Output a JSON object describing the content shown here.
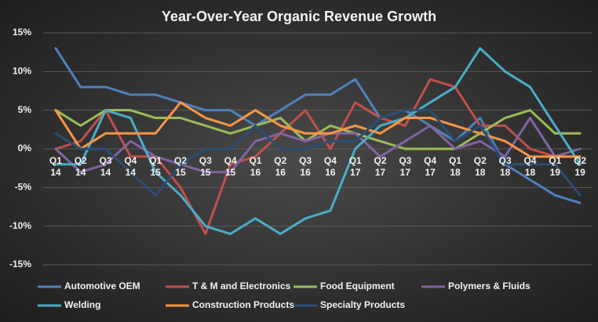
{
  "chart_data": {
    "type": "line",
    "title": "Year-Over-Year  Organic  Revenue  Growth",
    "categories": [
      "Q1 14",
      "Q2 14",
      "Q3 14",
      "Q4 14",
      "Q1 15",
      "Q2 15",
      "Q3 15",
      "Q4 15",
      "Q1 16",
      "Q2 16",
      "Q3 16",
      "Q4 16",
      "Q1 17",
      "Q2 17",
      "Q3 17",
      "Q4 17",
      "Q1 18",
      "Q2 18",
      "Q3 18",
      "Q4 18",
      "Q1 19",
      "Q2 19"
    ],
    "ylim": [
      -15,
      15
    ],
    "yticks": [
      {
        "value": -15,
        "label": "-15%"
      },
      {
        "value": -10,
        "label": "-10%"
      },
      {
        "value": -5,
        "label": "-5%"
      },
      {
        "value": 0,
        "label": "0%"
      },
      {
        "value": 5,
        "label": "5%"
      },
      {
        "value": 10,
        "label": "10%"
      },
      {
        "value": 15,
        "label": "15%"
      }
    ],
    "grid": true,
    "legend": "bottom",
    "series": [
      {
        "name": "Automotive OEM",
        "color": "#4f81bd",
        "values": [
          13,
          8,
          8,
          7,
          7,
          6,
          5,
          5,
          3,
          5,
          7,
          7,
          9,
          4,
          5,
          3,
          1,
          4,
          -2,
          -4,
          -6,
          -7
        ]
      },
      {
        "name": "T & M and Electronics",
        "color": "#c0504d",
        "values": [
          0,
          1,
          5,
          -1,
          -1,
          -5,
          -11,
          -2,
          -1,
          2,
          5,
          0,
          6,
          4,
          3,
          9,
          8,
          3,
          3,
          0,
          -1,
          -1
        ]
      },
      {
        "name": "Food Equipment",
        "color": "#9bbb59",
        "values": [
          5,
          3,
          5,
          5,
          4,
          4,
          3,
          2,
          3,
          4,
          1,
          3,
          2,
          1,
          0,
          0,
          0,
          2,
          4,
          5,
          2,
          2
        ]
      },
      {
        "name": "Polymers & Fluids",
        "color": "#8064a2",
        "values": [
          0,
          -3,
          -2,
          1,
          -1,
          -2,
          -3,
          -3,
          1,
          2,
          1,
          2,
          2,
          -1,
          1,
          3,
          0,
          1,
          -1,
          4,
          -1,
          0
        ]
      },
      {
        "name": "Welding",
        "color": "#4bacc6",
        "values": [
          -2,
          -2,
          5,
          4,
          -3,
          -6,
          -10,
          -11,
          -9,
          -11,
          -9,
          -8,
          0,
          3,
          4,
          6,
          8,
          13,
          10,
          8,
          3,
          -2
        ]
      },
      {
        "name": "Construction Products",
        "color": "#f79646",
        "values": [
          5,
          0,
          2,
          2,
          2,
          6,
          4,
          3,
          5,
          3,
          2,
          2,
          3,
          2,
          4,
          4,
          3,
          2,
          1,
          -1,
          -1,
          -1
        ]
      },
      {
        "name": "Specialty Products",
        "color": "#2c4d75",
        "values": [
          2,
          0,
          0,
          -3,
          -6,
          -2,
          0,
          0,
          3,
          0,
          0,
          1,
          1,
          4,
          5,
          5,
          1,
          3,
          -2,
          -2,
          -2,
          -6
        ]
      }
    ]
  }
}
